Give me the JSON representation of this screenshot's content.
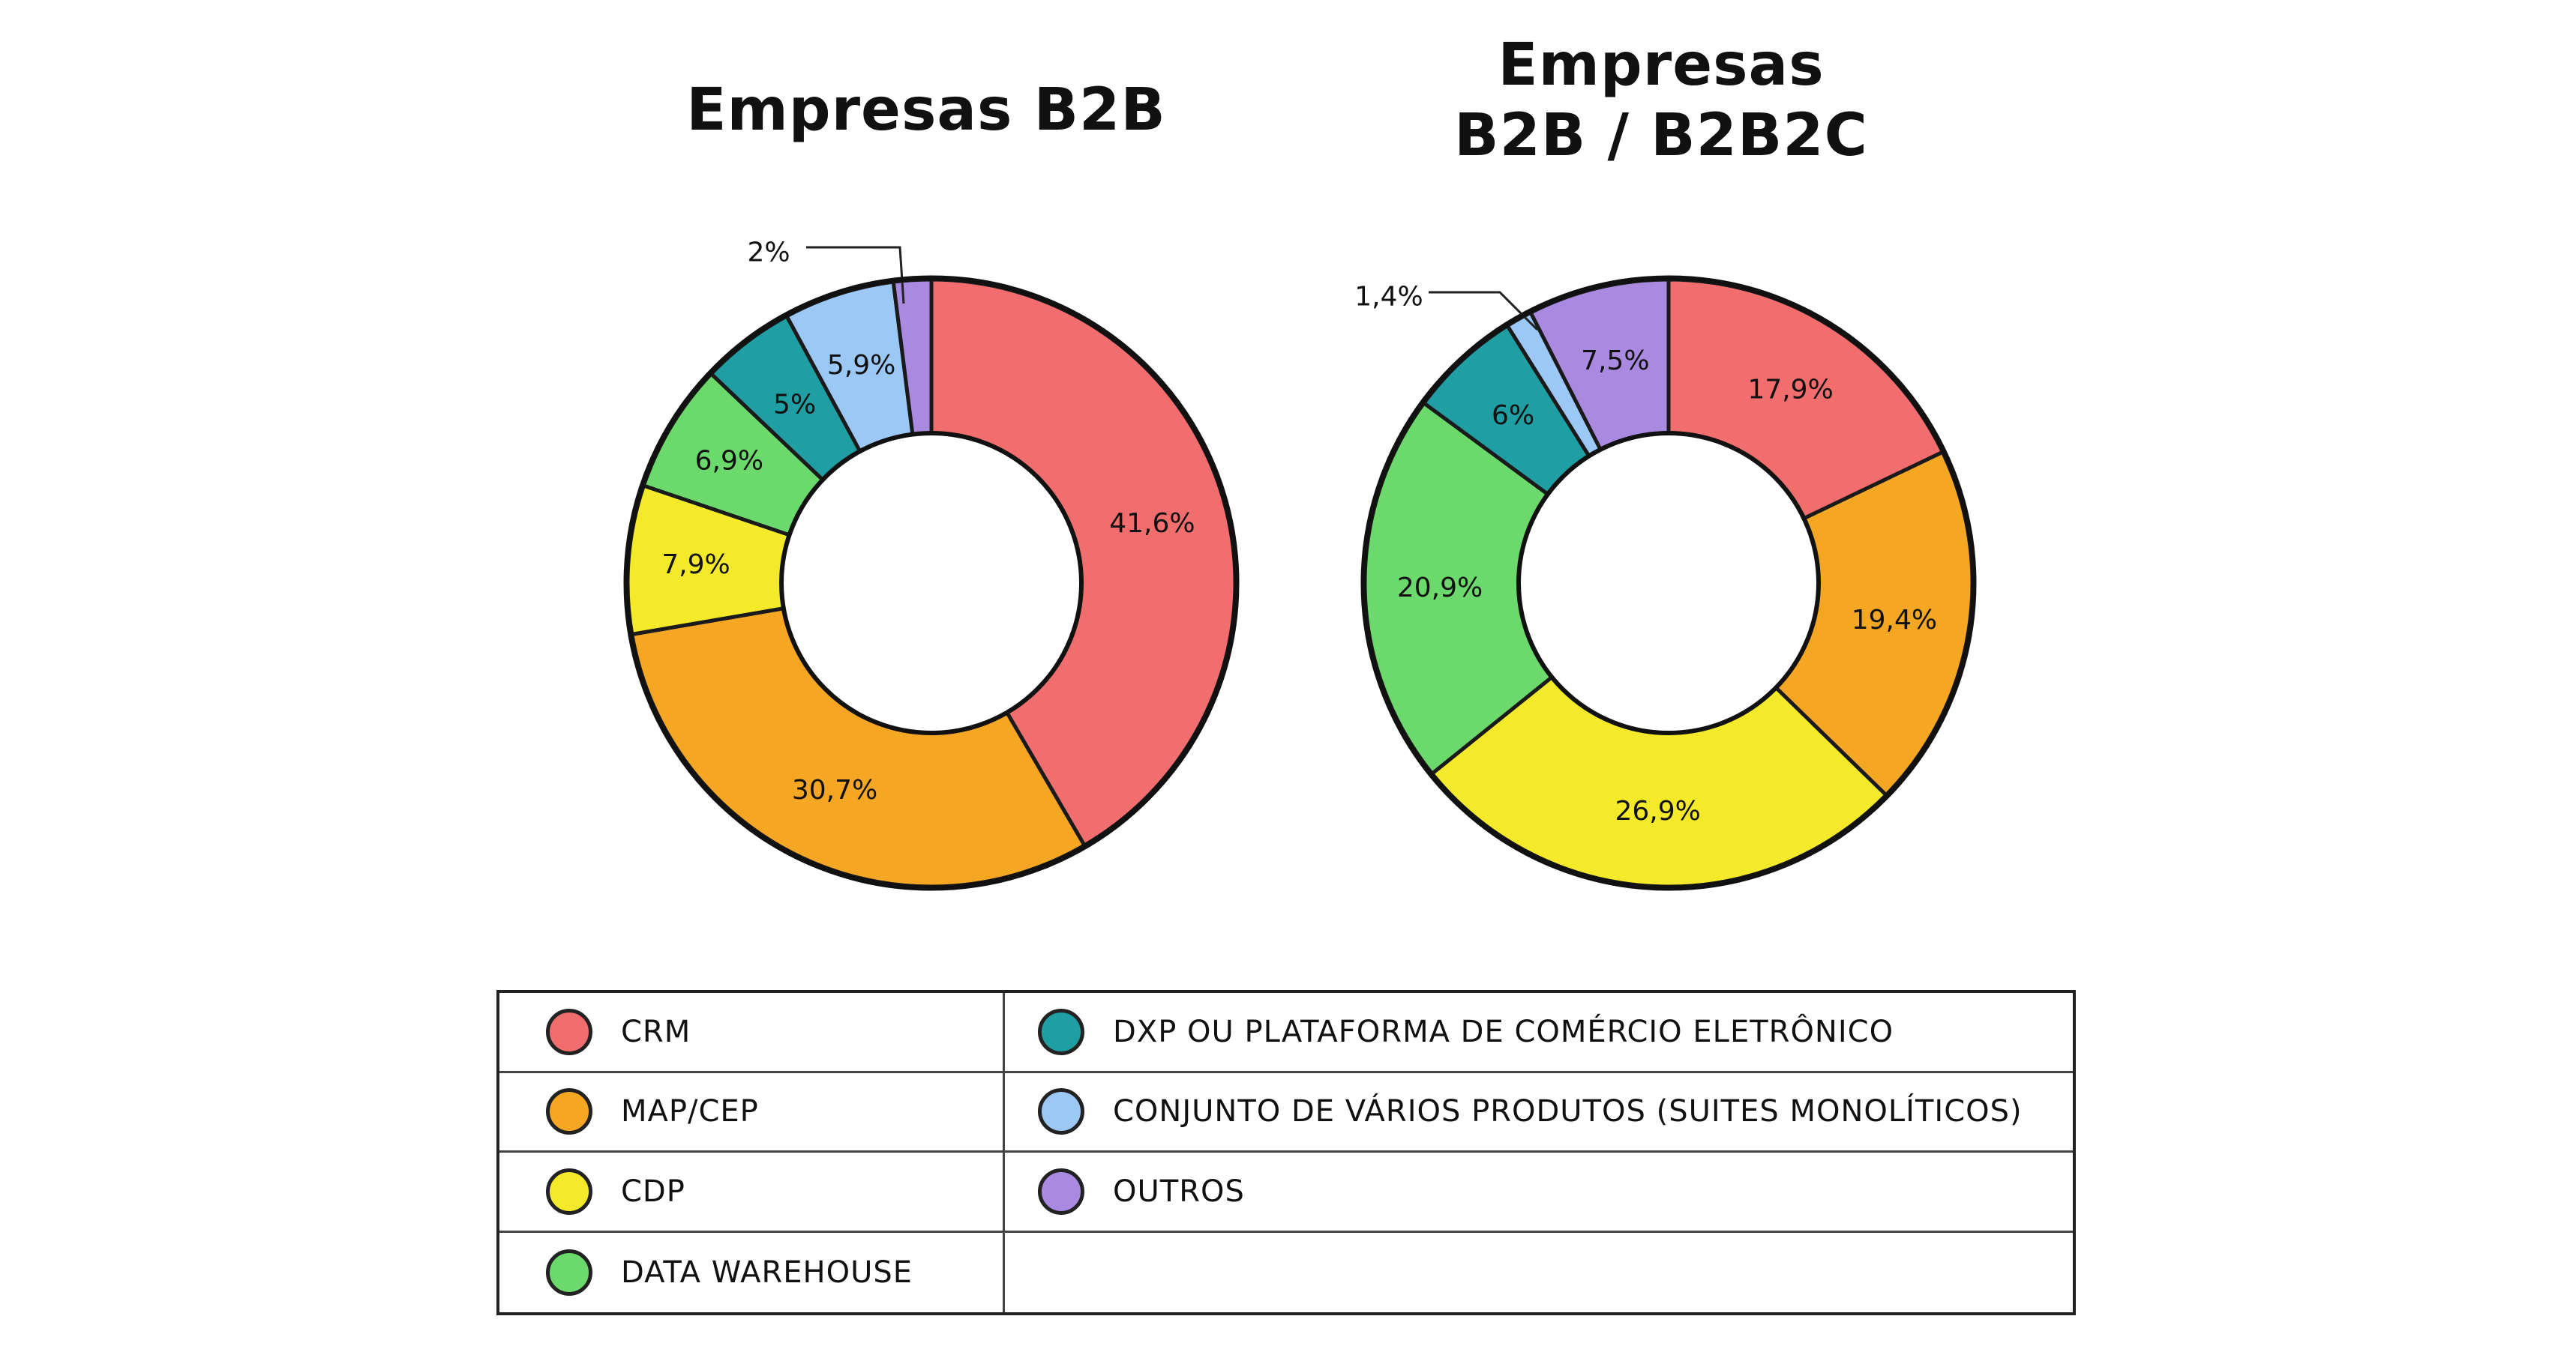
{
  "chart_data": [
    {
      "type": "pie",
      "title": "Empresas B2B",
      "categories": [
        "CRM",
        "MAP/CEP",
        "CDP",
        "DATA WAREHOUSE",
        "DXP OU PLATAFORMA DE COMÉRCIO ELETRÔNICO",
        "CONJUNTO DE VÁRIOS PRODUTOS (SUITES MONOLÍTICOS)",
        "OUTROS"
      ],
      "values": [
        41.6,
        30.7,
        7.9,
        6.9,
        5,
        5.9,
        2
      ],
      "value_labels": [
        "41,6%",
        "30,7%",
        "7,9%",
        "6,9%",
        "5%",
        "5,9%",
        "2%"
      ]
    },
    {
      "type": "pie",
      "title_lines": [
        "Empresas",
        "B2B / B2B2C"
      ],
      "categories": [
        "CRM",
        "MAP/CEP",
        "CDP",
        "DATA WAREHOUSE",
        "DXP OU PLATAFORMA DE COMÉRCIO ELETRÔNICO",
        "CONJUNTO DE VÁRIOS PRODUTOS (SUITES MONOLÍTICOS)",
        "OUTROS"
      ],
      "values": [
        17.9,
        19.4,
        26.9,
        20.9,
        6,
        1.4,
        7.5
      ],
      "value_labels": [
        "17,9%",
        "19,4%",
        "26,9%",
        "20,9%",
        "6%",
        "1,4%",
        "7,5%"
      ]
    }
  ],
  "legend": [
    {
      "label": "CRM",
      "color": "#f26d6d"
    },
    {
      "label": "MAP/CEP",
      "color": "#f5a623"
    },
    {
      "label": "CDP",
      "color": "#f4ea2a"
    },
    {
      "label": "DATA WAREHOUSE",
      "color": "#6bd96b"
    },
    {
      "label": "DXP OU PLATAFORMA DE COMÉRCIO ELETRÔNICO",
      "color": "#1f9fa3"
    },
    {
      "label": "CONJUNTO DE VÁRIOS PRODUTOS (SUITES MONOLÍTICOS)",
      "color": "#9cc8f5"
    },
    {
      "label": "OUTROS",
      "color": "#a98ae0"
    }
  ]
}
